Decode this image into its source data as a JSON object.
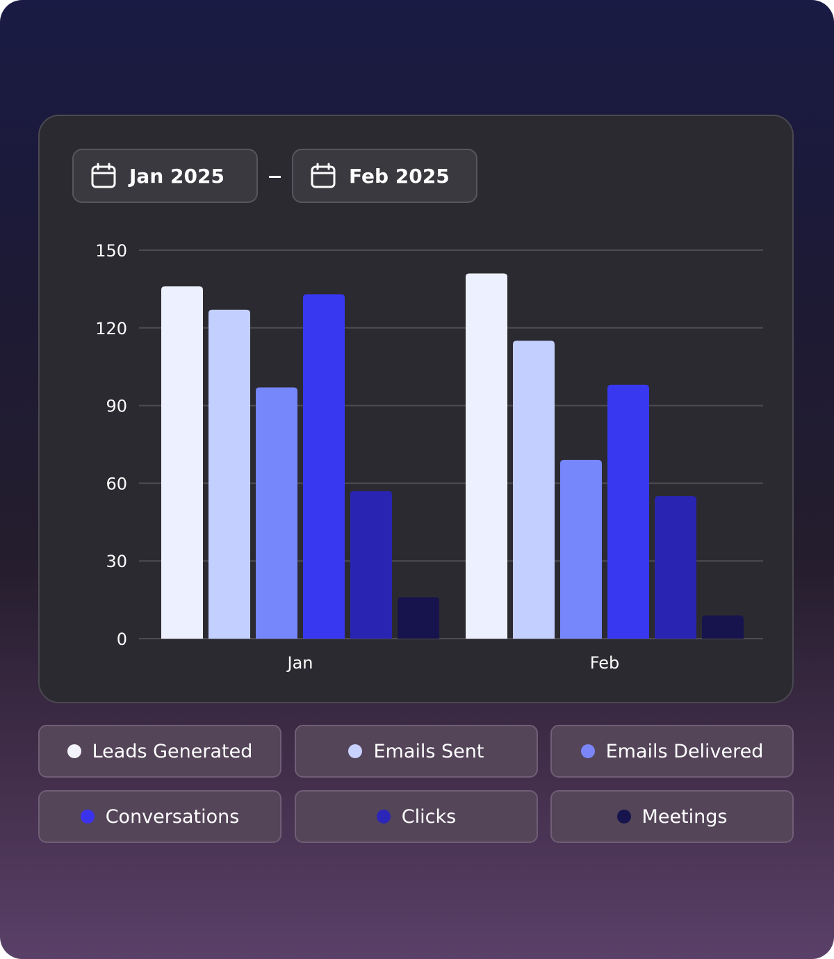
{
  "date_range": {
    "start": "Jan 2025",
    "separator": "–",
    "end": "Feb 2025",
    "icon": "calendar-icon"
  },
  "chart_data": {
    "type": "bar",
    "categories": [
      "Jan",
      "Feb"
    ],
    "series": [
      {
        "name": "Leads Generated",
        "color": "#edf1ff",
        "values": [
          136,
          141
        ]
      },
      {
        "name": "Emails Sent",
        "color": "#c3cfff",
        "values": [
          127,
          115
        ]
      },
      {
        "name": "Emails Delivered",
        "color": "#7686fb",
        "values": [
          97,
          69
        ]
      },
      {
        "name": "Conversations",
        "color": "#3838f0",
        "values": [
          133,
          98
        ]
      },
      {
        "name": "Clicks",
        "color": "#2a24b2",
        "values": [
          57,
          55
        ]
      },
      {
        "name": "Meetings",
        "color": "#17144d",
        "values": [
          16,
          9
        ]
      }
    ],
    "yticks": [
      0,
      30,
      60,
      90,
      120,
      150
    ],
    "ylim": [
      0,
      150
    ],
    "grid": true,
    "title": "",
    "xlabel": "",
    "ylabel": "",
    "legend": "bottom"
  },
  "legend": {
    "items": [
      {
        "label": "Leads Generated",
        "color": "#f3f4fb"
      },
      {
        "label": "Emails Sent",
        "color": "#c9d2ff"
      },
      {
        "label": "Emails Delivered",
        "color": "#7b86fa"
      },
      {
        "label": "Conversations",
        "color": "#3a32ec"
      },
      {
        "label": "Clicks",
        "color": "#2c26b8"
      },
      {
        "label": "Meetings",
        "color": "#17144d"
      }
    ]
  },
  "colors": {
    "grid": "#4d4c52",
    "axis_text": "#ffffff"
  }
}
